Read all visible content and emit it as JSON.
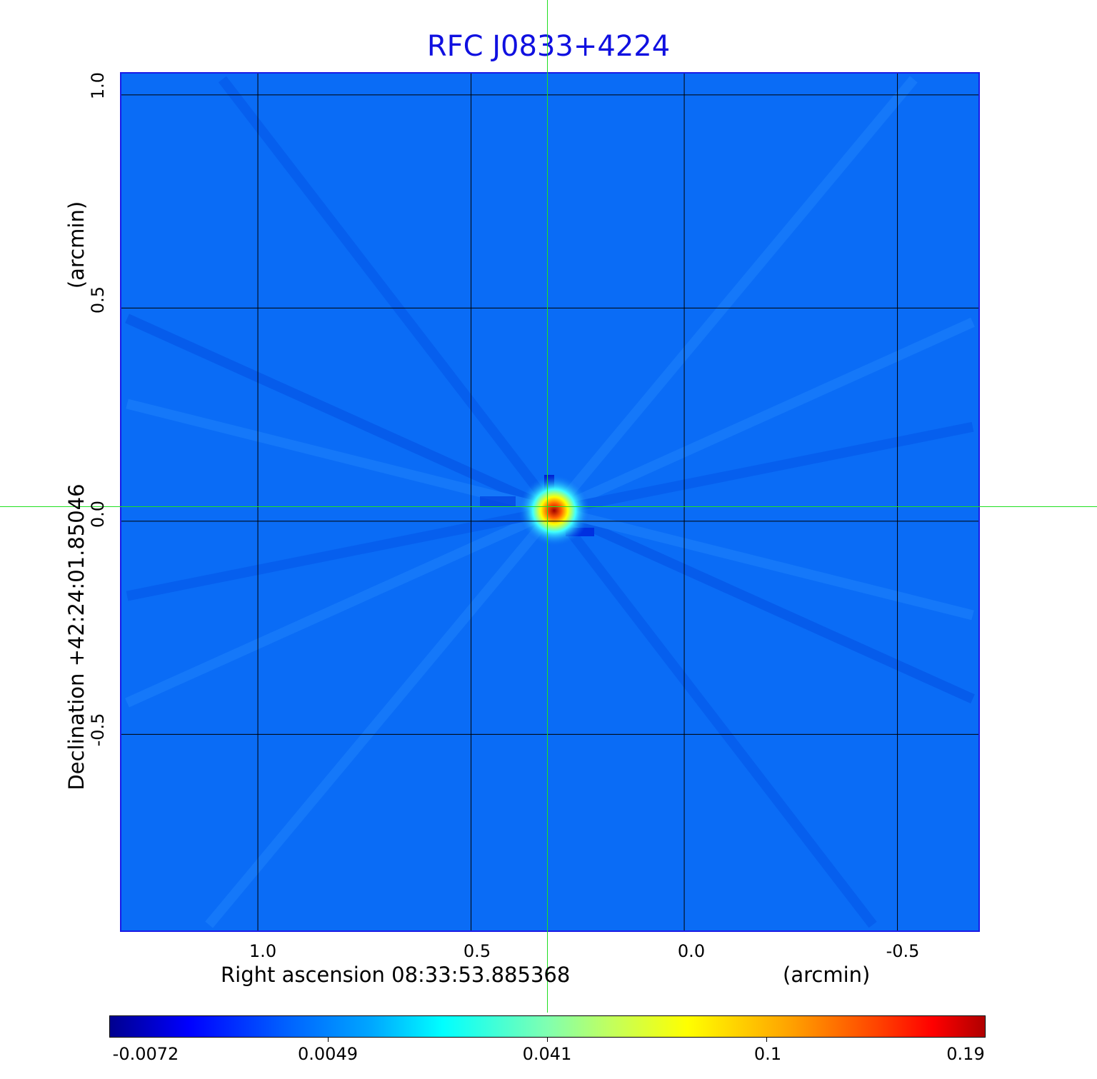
{
  "chart_data": {
    "type": "heatmap",
    "title": "RFC J0833+4224",
    "xlabel": "Right ascension  08:33:53.885368",
    "xunit": "(arcmin)",
    "ylabel": "Declination  +42:24:01.85046",
    "yunit": "(arcmin)",
    "x_ticks": [
      "1.0",
      "0.5",
      "0.0",
      "-0.5"
    ],
    "x_tick_values": [
      1.0,
      0.5,
      0.0,
      -0.5
    ],
    "y_ticks": [
      "1.0",
      "0.5",
      "0.0",
      "-0.5"
    ],
    "y_tick_values": [
      1.0,
      0.5,
      0.0,
      -0.5
    ],
    "xlim": [
      1.32,
      -0.69
    ],
    "ylim": [
      -0.96,
      1.05
    ],
    "grid": true,
    "colormap": "jet",
    "colorbar": {
      "placement": "bottom",
      "ticks": [
        "-0.0072",
        "0.0049",
        "0.041",
        "0.1",
        "0.19"
      ],
      "range": [
        -0.0072,
        0.19
      ]
    },
    "source": {
      "peak_value": 0.19,
      "position_arcmin": [
        0.33,
        0.03
      ]
    },
    "crosshair_color": "#00e000",
    "title_color": "#1010e0",
    "background_color": "#0a6cf6"
  }
}
